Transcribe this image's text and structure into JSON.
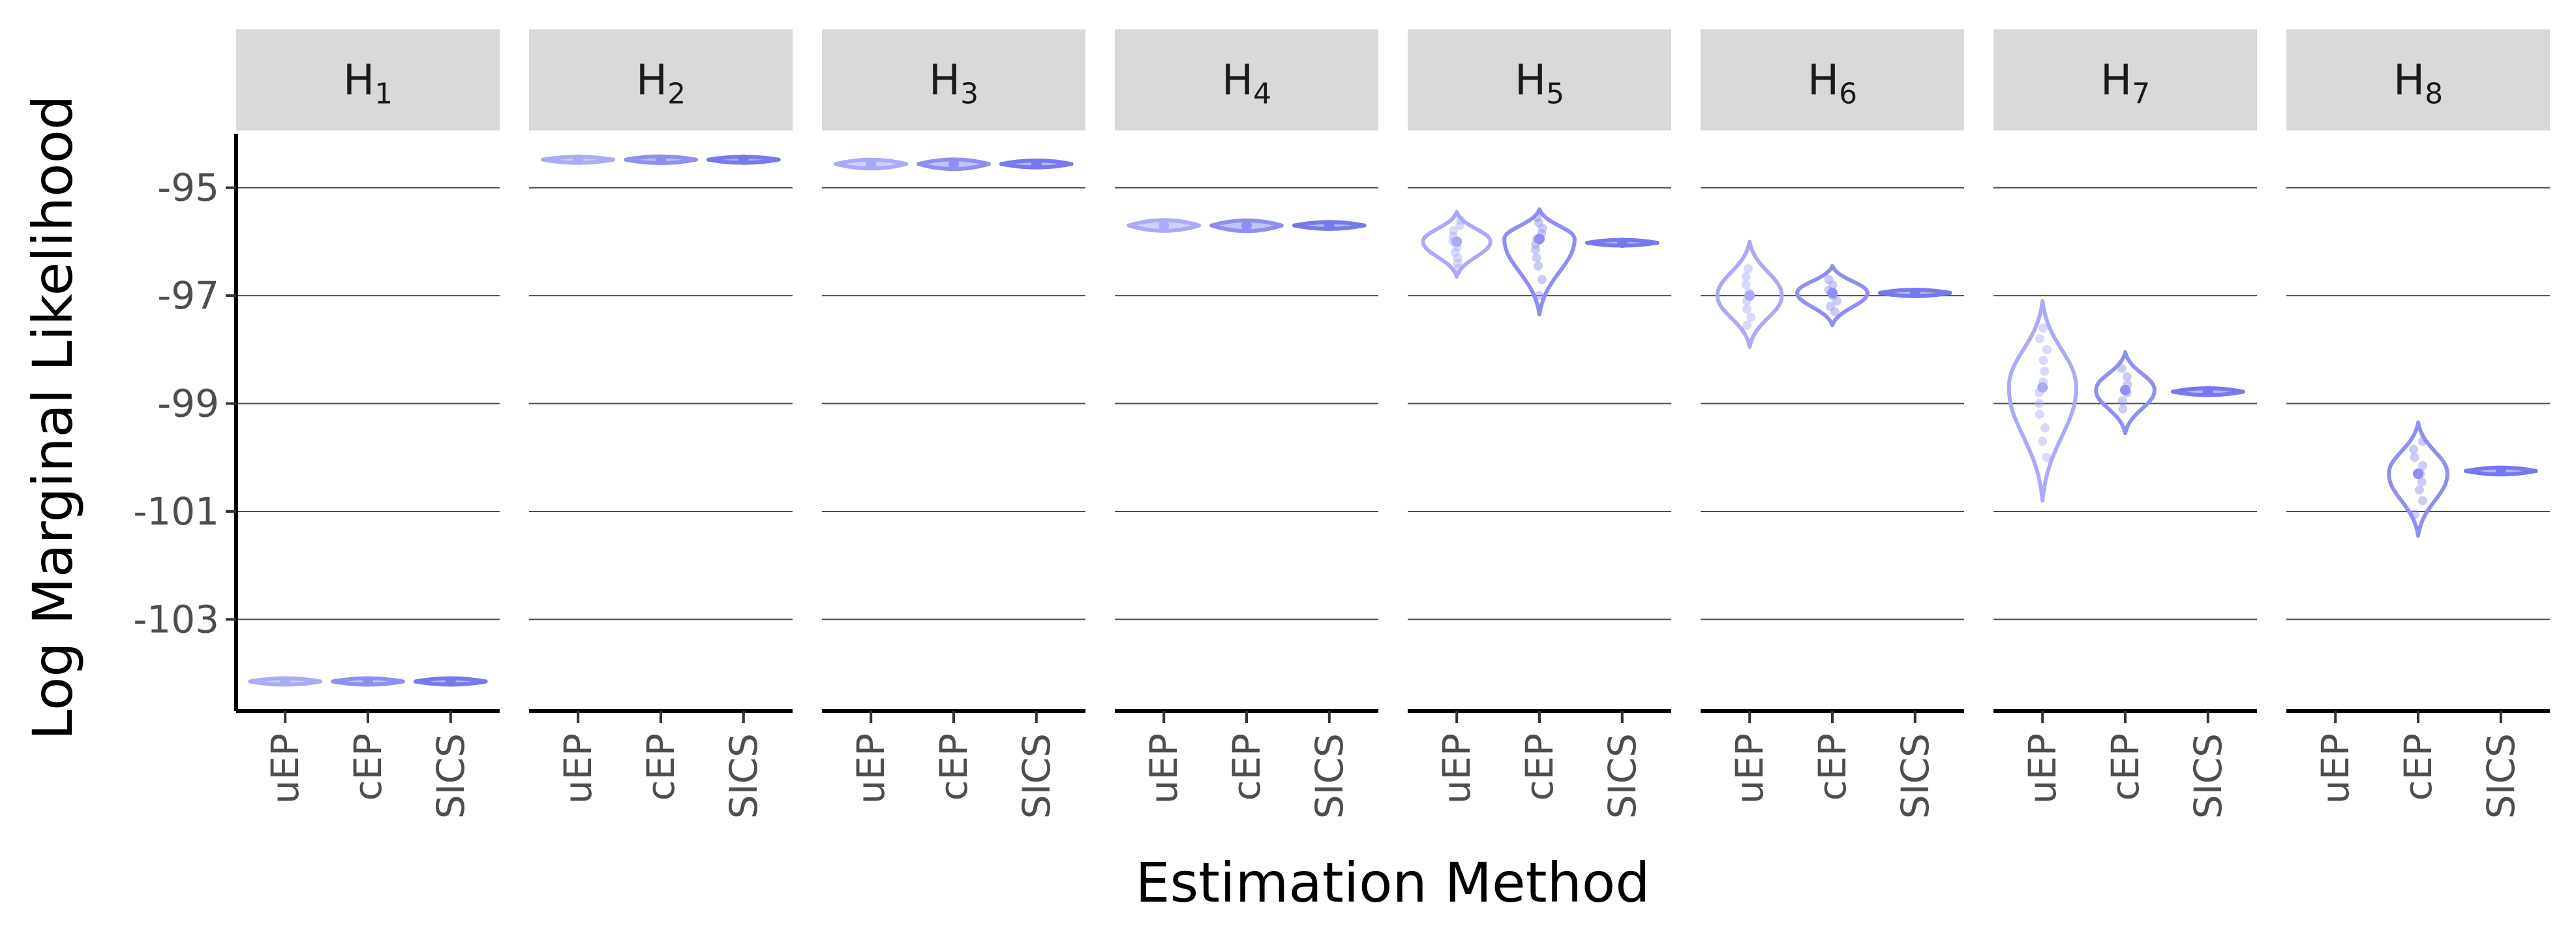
{
  "chart_data": {
    "type": "violin",
    "xlabel": "Estimation Method",
    "ylabel": "Log Marginal Likelihood",
    "ylim": [
      -104.7,
      -94.0
    ],
    "yticks": [
      -95,
      -97,
      -99,
      -101,
      -103
    ],
    "ytick_labels": [
      "-95",
      "-97",
      "-99",
      "-101",
      "-103"
    ],
    "grid": "major-y",
    "categories": [
      "uEP",
      "cEP",
      "SICS"
    ],
    "colors": {
      "uEP": "#aaaaf8",
      "cEP": "#8f8ff2",
      "SICS": "#7878ee"
    },
    "panels": [
      {
        "label": "H",
        "sub": "1",
        "groups": [
          {
            "method": "uEP",
            "center": -104.15,
            "min": -104.22,
            "max": -104.08,
            "halfwidth": 0.48,
            "points": [
              -104.15
            ]
          },
          {
            "method": "cEP",
            "center": -104.15,
            "min": -104.22,
            "max": -104.08,
            "halfwidth": 0.48,
            "points": [
              -104.15
            ]
          },
          {
            "method": "SICS",
            "center": -104.15,
            "min": -104.22,
            "max": -104.08,
            "halfwidth": 0.48,
            "points": [
              -104.15
            ]
          }
        ]
      },
      {
        "label": "H",
        "sub": "2",
        "groups": [
          {
            "method": "uEP",
            "center": -94.48,
            "min": -94.55,
            "max": -94.42,
            "halfwidth": 0.48,
            "points": [
              -94.48
            ]
          },
          {
            "method": "cEP",
            "center": -94.48,
            "min": -94.56,
            "max": -94.41,
            "halfwidth": 0.48,
            "points": [
              -94.48
            ]
          },
          {
            "method": "SICS",
            "center": -94.48,
            "min": -94.55,
            "max": -94.42,
            "halfwidth": 0.48,
            "points": [
              -94.48
            ]
          }
        ]
      },
      {
        "label": "H",
        "sub": "3",
        "groups": [
          {
            "method": "uEP",
            "center": -94.56,
            "min": -94.68,
            "max": -94.45,
            "halfwidth": 0.48,
            "points": [
              -94.56
            ]
          },
          {
            "method": "cEP",
            "center": -94.56,
            "min": -94.7,
            "max": -94.44,
            "halfwidth": 0.48,
            "points": [
              -94.56
            ]
          },
          {
            "method": "SICS",
            "center": -94.56,
            "min": -94.64,
            "max": -94.48,
            "halfwidth": 0.48,
            "points": [
              -94.56
            ]
          }
        ]
      },
      {
        "label": "H",
        "sub": "4",
        "groups": [
          {
            "method": "uEP",
            "center": -95.7,
            "min": -95.85,
            "max": -95.55,
            "halfwidth": 0.48,
            "points": [
              -95.7
            ]
          },
          {
            "method": "cEP",
            "center": -95.7,
            "min": -95.86,
            "max": -95.56,
            "halfwidth": 0.48,
            "points": [
              -95.7
            ]
          },
          {
            "method": "SICS",
            "center": -95.7,
            "min": -95.78,
            "max": -95.62,
            "halfwidth": 0.48,
            "points": [
              -95.7
            ]
          }
        ]
      },
      {
        "label": "H",
        "sub": "5",
        "groups": [
          {
            "method": "uEP",
            "center": -96.0,
            "min": -96.65,
            "max": -95.45,
            "halfwidth": 0.46,
            "points": [
              -95.6,
              -95.7,
              -95.8,
              -95.9,
              -96.0,
              -96.1,
              -96.2,
              -96.3,
              -96.4,
              -96.5
            ]
          },
          {
            "method": "cEP",
            "center": -95.95,
            "min": -97.35,
            "max": -95.4,
            "halfwidth": 0.48,
            "points": [
              -95.55,
              -95.65,
              -95.75,
              -95.85,
              -95.95,
              -96.05,
              -96.15,
              -96.3,
              -96.45,
              -96.7,
              -97.0
            ]
          },
          {
            "method": "SICS",
            "center": -96.02,
            "min": -96.08,
            "max": -95.96,
            "halfwidth": 0.48,
            "points": [
              -96.02
            ]
          }
        ]
      },
      {
        "label": "H",
        "sub": "6",
        "groups": [
          {
            "method": "uEP",
            "center": -97.0,
            "min": -97.95,
            "max": -96.0,
            "halfwidth": 0.44,
            "points": [
              -96.5,
              -96.65,
              -96.8,
              -96.95,
              -97.1,
              -97.25,
              -97.4,
              -97.55
            ]
          },
          {
            "method": "cEP",
            "center": -96.95,
            "min": -97.55,
            "max": -96.45,
            "halfwidth": 0.48,
            "points": [
              -96.7,
              -96.8,
              -96.9,
              -97.0,
              -97.1,
              -97.2,
              -97.3
            ]
          },
          {
            "method": "SICS",
            "center": -96.95,
            "min": -97.02,
            "max": -96.88,
            "halfwidth": 0.48,
            "points": [
              -96.95
            ]
          }
        ]
      },
      {
        "label": "H",
        "sub": "7",
        "groups": [
          {
            "method": "uEP",
            "center": -98.7,
            "min": -100.8,
            "max": -97.1,
            "halfwidth": 0.46,
            "points": [
              -97.6,
              -97.8,
              -98.0,
              -98.2,
              -98.4,
              -98.6,
              -98.8,
              -99.0,
              -99.2,
              -99.45,
              -99.7,
              -100.0
            ]
          },
          {
            "method": "cEP",
            "center": -98.75,
            "min": -99.55,
            "max": -98.05,
            "halfwidth": 0.4,
            "points": [
              -98.35,
              -98.5,
              -98.65,
              -98.8,
              -98.95,
              -99.1
            ]
          },
          {
            "method": "SICS",
            "center": -98.78,
            "min": -98.86,
            "max": -98.7,
            "halfwidth": 0.48,
            "points": [
              -98.78
            ]
          }
        ]
      },
      {
        "label": "H",
        "sub": "8",
        "groups": [
          {
            "method": "uEP",
            "center": null,
            "min": null,
            "max": null,
            "halfwidth": 0,
            "points": []
          },
          {
            "method": "cEP",
            "center": -100.3,
            "min": -101.45,
            "max": -99.35,
            "halfwidth": 0.4,
            "points": [
              -99.7,
              -99.85,
              -100.0,
              -100.15,
              -100.3,
              -100.45,
              -100.6,
              -100.8,
              -101.05
            ]
          },
          {
            "method": "SICS",
            "center": -100.25,
            "min": -100.33,
            "max": -100.17,
            "halfwidth": 0.48,
            "points": [
              -100.25
            ]
          }
        ]
      }
    ]
  }
}
